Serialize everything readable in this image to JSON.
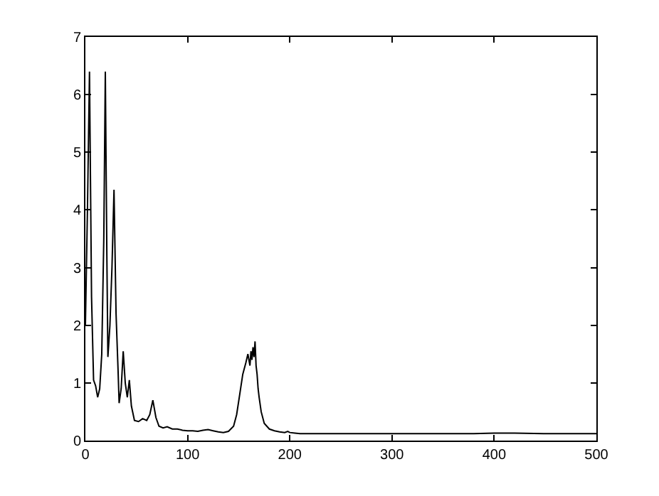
{
  "chart_data": {
    "type": "line",
    "x": [
      0,
      2,
      4,
      6,
      8,
      10,
      12,
      14,
      16,
      18,
      19.5,
      21,
      22,
      24,
      26,
      28,
      30,
      32,
      33,
      35,
      37,
      39,
      41,
      43,
      45,
      48,
      52,
      56,
      60,
      63,
      66,
      69,
      72,
      76,
      80,
      85,
      90,
      95,
      100,
      105,
      110,
      115,
      120,
      125,
      130,
      135,
      140,
      145,
      148,
      151,
      154,
      157,
      159,
      161,
      162,
      163,
      164,
      165,
      166,
      167,
      168,
      169,
      170,
      172,
      175,
      180,
      185,
      190,
      195,
      198,
      200,
      205,
      210,
      220,
      250,
      300,
      350,
      380,
      400,
      420,
      450,
      480,
      500
    ],
    "series": [
      {
        "color": "#000000",
        "values": [
          2.0,
          4.0,
          6.4,
          2.5,
          1.05,
          0.95,
          0.75,
          0.9,
          1.5,
          3.5,
          6.4,
          3.2,
          1.45,
          2.0,
          3.0,
          4.35,
          2.2,
          1.2,
          0.65,
          0.9,
          1.55,
          1.0,
          0.75,
          1.05,
          0.6,
          0.35,
          0.33,
          0.38,
          0.35,
          0.45,
          0.7,
          0.4,
          0.25,
          0.22,
          0.24,
          0.2,
          0.2,
          0.18,
          0.17,
          0.17,
          0.16,
          0.18,
          0.19,
          0.17,
          0.15,
          0.14,
          0.16,
          0.25,
          0.45,
          0.8,
          1.15,
          1.35,
          1.5,
          1.3,
          1.55,
          1.4,
          1.62,
          1.45,
          1.72,
          1.3,
          1.15,
          0.9,
          0.75,
          0.5,
          0.3,
          0.2,
          0.17,
          0.15,
          0.14,
          0.16,
          0.14,
          0.13,
          0.12,
          0.12,
          0.12,
          0.12,
          0.12,
          0.12,
          0.13,
          0.13,
          0.12,
          0.12,
          0.12
        ]
      }
    ],
    "xlim": [
      0,
      500
    ],
    "xticks": [
      0,
      100,
      200,
      300,
      400,
      500
    ],
    "ylim": [
      0,
      7
    ],
    "yticks": [
      0,
      1,
      2,
      3,
      4,
      5,
      6,
      7
    ]
  }
}
